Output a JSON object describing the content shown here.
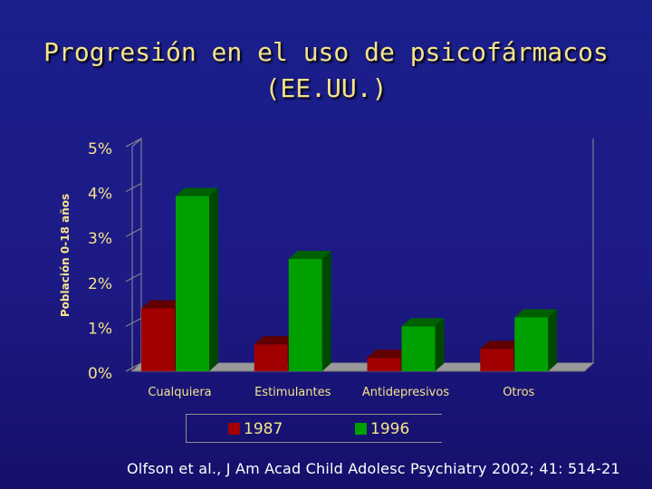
{
  "title_line1": "Progresión en el uso de psicofármacos",
  "title_line2": "(EE.UU.)",
  "citation": "Olfson et al., J Am Acad Child Adolesc Psychiatry 2002; 41: 514-21",
  "chart_data": {
    "type": "bar",
    "title": "Progresión en el uso de psicofármacos (EE.UU.)",
    "ylabel": "Población 0-18 años",
    "xlabel": "",
    "categories": [
      "Cualquiera",
      "Estimulantes",
      "Antidepresivos",
      "Otros"
    ],
    "series": [
      {
        "name": "1987",
        "values": [
          1.4,
          0.6,
          0.3,
          0.5
        ],
        "color": "#a00000"
      },
      {
        "name": "1996",
        "values": [
          3.9,
          2.5,
          1.0,
          1.2
        ],
        "color": "#00a000"
      }
    ],
    "yticks": [
      "0%",
      "1%",
      "2%",
      "3%",
      "4%",
      "5%"
    ],
    "ylim": [
      0,
      5
    ],
    "legend_position": "bottom",
    "grid": false,
    "style": "3d"
  }
}
